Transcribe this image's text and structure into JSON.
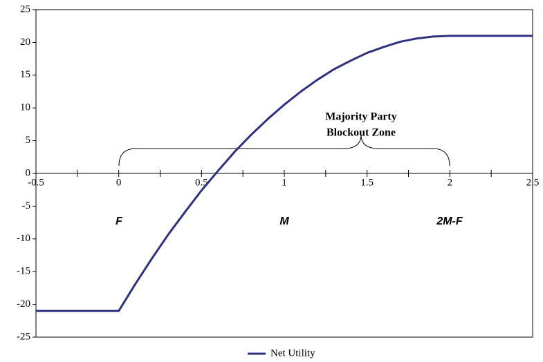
{
  "chart_data": {
    "type": "line",
    "x": [
      -0.5,
      0,
      0.1,
      0.2,
      0.3,
      0.4,
      0.5,
      0.6,
      0.7,
      0.8,
      0.9,
      1.0,
      1.1,
      1.2,
      1.3,
      1.4,
      1.5,
      1.6,
      1.7,
      1.8,
      1.9,
      2.0,
      2.5
    ],
    "series": [
      {
        "name": "Net Utility",
        "color": "#2e3080",
        "values": [
          -21,
          -21,
          -16.9,
          -13.0,
          -9.3,
          -5.9,
          -2.6,
          0.4,
          3.3,
          5.9,
          8.3,
          10.5,
          12.5,
          14.3,
          15.9,
          17.2,
          18.4,
          19.3,
          20.1,
          20.6,
          20.9,
          21,
          21
        ]
      }
    ],
    "xlim": [
      -0.5,
      2.5
    ],
    "xticks": [
      -0.5,
      0,
      0.5,
      1,
      1.5,
      2,
      2.5
    ],
    "x_minor_ticks": [
      -0.25,
      0.25,
      0.75,
      1.25,
      1.75,
      2.25
    ],
    "ylim": [
      -25,
      25
    ],
    "yticks": [
      -25,
      -20,
      -15,
      -10,
      -5,
      0,
      5,
      10,
      15,
      20,
      25
    ],
    "annotation_lines": [
      "Majority Party",
      "Blockout Zone"
    ],
    "point_labels": [
      "F",
      "M",
      "2M-F"
    ],
    "legend": "bottom"
  }
}
